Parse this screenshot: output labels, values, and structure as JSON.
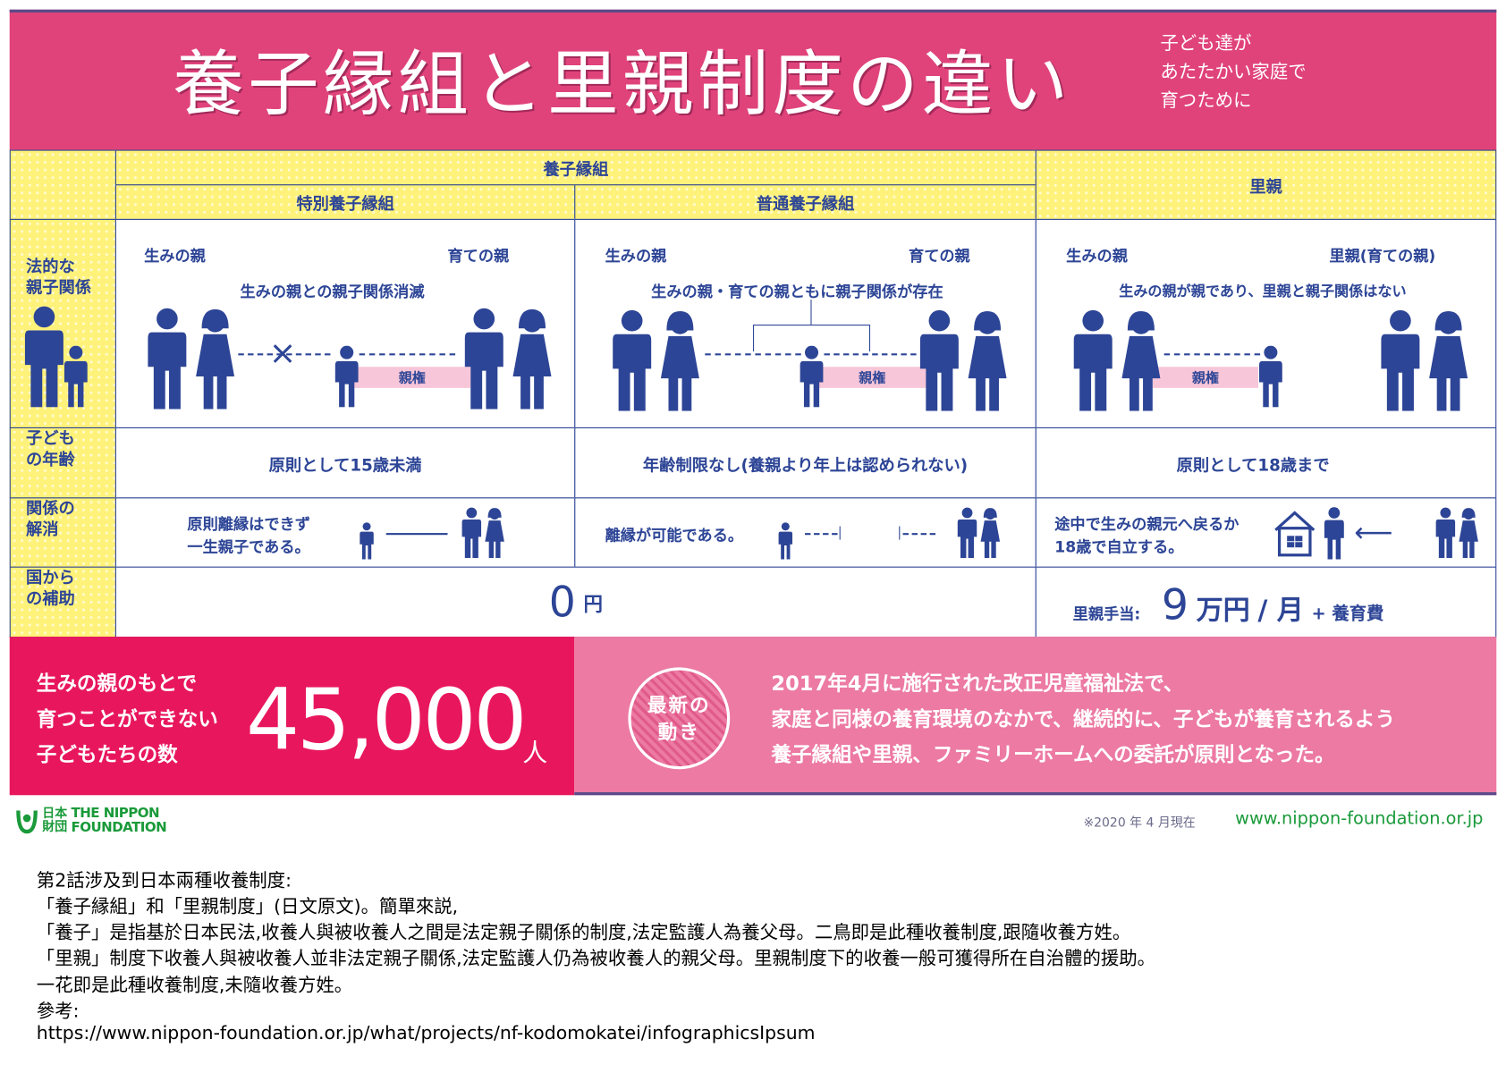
{
  "header": {
    "title": "養子縁組と里親制度の違い",
    "subtitle": [
      "子ども達が",
      "あたたかい家庭で",
      "育つために"
    ],
    "bg_color": "#e0437a"
  },
  "table": {
    "group_header": "養子縁組",
    "col_special": "特別養子縁組",
    "col_ordinary": "普通養子縁組",
    "col_foster": "里親",
    "rows": {
      "legal": {
        "label": [
          "法的な",
          "親子関係"
        ],
        "special": {
          "left": "生みの親",
          "right": "育ての親",
          "desc": "生みの親との親子関係消滅",
          "badge": "親権"
        },
        "ordinary": {
          "left": "生みの親",
          "right": "育ての親",
          "desc": "生みの親・育ての親ともに親子関係が存在",
          "badge": "親権"
        },
        "foster": {
          "left": "生みの親",
          "right": "里親(育ての親)",
          "desc": "生みの親が親であり、里親と親子関係はない",
          "badge": "親権"
        }
      },
      "age": {
        "label": [
          "子ども",
          "の年齢"
        ],
        "special": "原則として15歳未満",
        "ordinary": "年齢制限なし(養親より年上は認められない)",
        "foster": "原則として18歳まで"
      },
      "dissolution": {
        "label": [
          "関係の",
          "解消"
        ],
        "special": [
          "原則離縁はできず",
          "一生親子である。"
        ],
        "ordinary": "離縁が可能である。",
        "foster": [
          "途中で生みの親元へ戻るか",
          "18歳で自立する。"
        ]
      },
      "subsidy": {
        "label": [
          "国から",
          "の補助"
        ],
        "adoption_value": "0",
        "adoption_unit": "円",
        "foster_label": "里親手当:",
        "foster_value": "9",
        "foster_unit": "万円",
        "foster_per": "/ 月",
        "foster_plus": "+ 養育費"
      }
    }
  },
  "banner": {
    "left_text": [
      "生みの親のもとで",
      "育つことができない",
      "子どもたちの数"
    ],
    "count": "45,000",
    "count_unit": "人",
    "badge": [
      "最新の",
      "動き"
    ],
    "right_text": [
      "2017年4月に施行された改正児童福祉法で、",
      "家庭と同様の養育環境のなかで、継続的に、子どもが養育されるよう",
      "養子縁組や里親、ファミリーホームへの委託が原則となった。"
    ]
  },
  "footer": {
    "logo_jp": [
      "日本",
      "財団"
    ],
    "logo_en": [
      "THE NIPPON",
      "FOUNDATION"
    ],
    "date_note": "※2020 年 4 月現在",
    "url": "www.nippon-foundation.or.jp"
  },
  "notes": [
    "第2話涉及到日本兩種收養制度:",
    "「養子縁組」和「里親制度」(日文原文)。簡單來説,",
    "「養子」是指基於日本民法,收養人與被收養人之間是法定親子關係的制度,法定監護人為養父母。二鳥即是此種收養制度,跟隨收養方姓。",
    "「里親」制度下收養人與被收養人並非法定親子關係,法定監護人仍為被收養人的親父母。里親制度下的收養一般可獲得所在自治體的援助。",
    "一花即是此種收養制度,未隨收養方姓。",
    "參考:",
    "https://www.nippon-foundation.or.jp/what/projects/nf-kodomokatei/infographicsIpsum"
  ],
  "colors": {
    "navy": "#2d4596",
    "yellow": "#fff27a",
    "banner_red": "#e8175d",
    "banner_pink": "#ec7aa2",
    "green": "#1a9a3a"
  }
}
